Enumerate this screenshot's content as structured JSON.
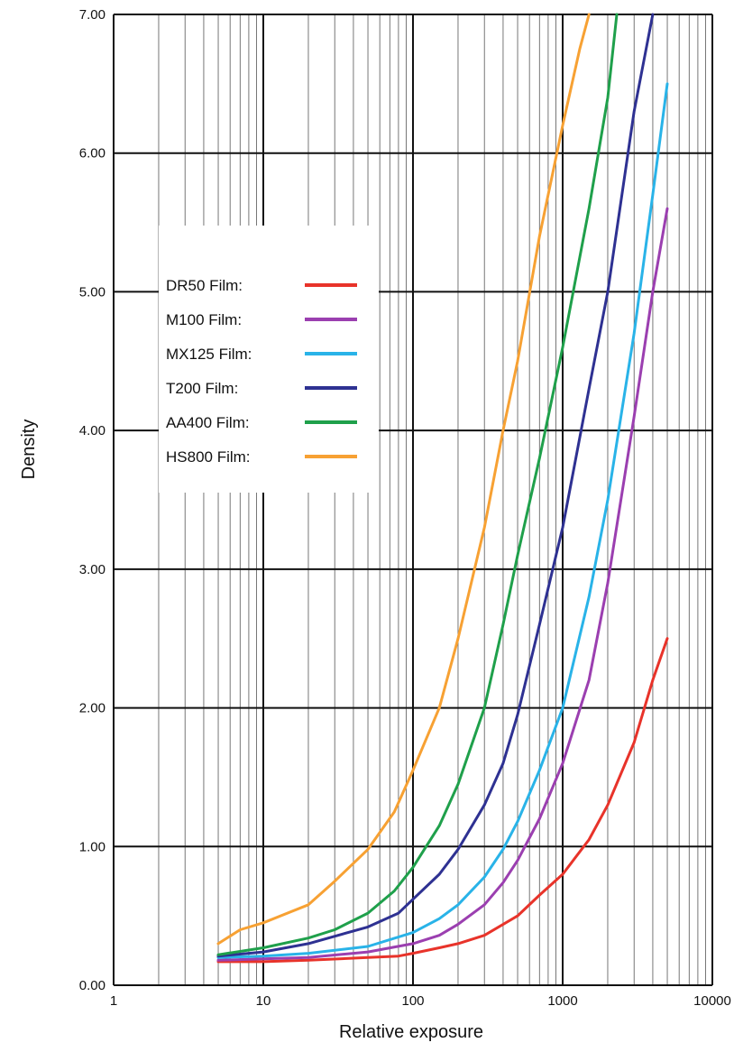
{
  "chart_data": {
    "type": "line",
    "xlabel": "Relative exposure",
    "ylabel": "Density",
    "x_scale": "log",
    "xlim": [
      1,
      10000
    ],
    "ylim": [
      0,
      7
    ],
    "x_ticks": [
      "1",
      "10",
      "100",
      "1000",
      "10000"
    ],
    "y_ticks": [
      "0.00",
      "1.00",
      "2.00",
      "3.00",
      "4.00",
      "5.00",
      "6.00",
      "7.00"
    ],
    "grid": true,
    "legend_position": "upper-left",
    "series": [
      {
        "name": "DR50 Film:",
        "color": "#e8332a",
        "points": [
          [
            5,
            0.17
          ],
          [
            10,
            0.17
          ],
          [
            20,
            0.18
          ],
          [
            50,
            0.2
          ],
          [
            80,
            0.21
          ],
          [
            100,
            0.23
          ],
          [
            150,
            0.27
          ],
          [
            200,
            0.3
          ],
          [
            300,
            0.36
          ],
          [
            500,
            0.5
          ],
          [
            700,
            0.65
          ],
          [
            1000,
            0.8
          ],
          [
            1500,
            1.05
          ],
          [
            2000,
            1.3
          ],
          [
            3000,
            1.75
          ],
          [
            4000,
            2.2
          ],
          [
            5000,
            2.5
          ]
        ]
      },
      {
        "name": "M100 Film:",
        "color": "#9b3fb0",
        "points": [
          [
            5,
            0.18
          ],
          [
            10,
            0.19
          ],
          [
            20,
            0.2
          ],
          [
            50,
            0.24
          ],
          [
            100,
            0.3
          ],
          [
            150,
            0.36
          ],
          [
            200,
            0.44
          ],
          [
            300,
            0.58
          ],
          [
            400,
            0.74
          ],
          [
            500,
            0.9
          ],
          [
            700,
            1.2
          ],
          [
            1000,
            1.6
          ],
          [
            1500,
            2.2
          ],
          [
            2000,
            2.9
          ],
          [
            3000,
            4.1
          ],
          [
            4000,
            5.0
          ],
          [
            5000,
            5.6
          ]
        ]
      },
      {
        "name": "MX125 Film:",
        "color": "#29b3e8",
        "points": [
          [
            5,
            0.2
          ],
          [
            10,
            0.21
          ],
          [
            20,
            0.23
          ],
          [
            50,
            0.28
          ],
          [
            100,
            0.38
          ],
          [
            150,
            0.48
          ],
          [
            200,
            0.58
          ],
          [
            300,
            0.78
          ],
          [
            400,
            0.98
          ],
          [
            500,
            1.18
          ],
          [
            700,
            1.55
          ],
          [
            1000,
            2.0
          ],
          [
            1500,
            2.8
          ],
          [
            2000,
            3.5
          ],
          [
            3000,
            4.7
          ],
          [
            4000,
            5.7
          ],
          [
            5000,
            6.5
          ]
        ]
      },
      {
        "name": "T200 Film:",
        "color": "#2e3192",
        "points": [
          [
            5,
            0.21
          ],
          [
            10,
            0.24
          ],
          [
            20,
            0.3
          ],
          [
            50,
            0.42
          ],
          [
            80,
            0.52
          ],
          [
            100,
            0.62
          ],
          [
            150,
            0.8
          ],
          [
            200,
            0.98
          ],
          [
            300,
            1.3
          ],
          [
            400,
            1.6
          ],
          [
            500,
            1.95
          ],
          [
            700,
            2.6
          ],
          [
            1000,
            3.3
          ],
          [
            1500,
            4.3
          ],
          [
            2000,
            5.0
          ],
          [
            3000,
            6.3
          ],
          [
            4000,
            7.0
          ]
        ]
      },
      {
        "name": "AA400 Film:",
        "color": "#1fa04b",
        "points": [
          [
            5,
            0.22
          ],
          [
            10,
            0.27
          ],
          [
            20,
            0.34
          ],
          [
            30,
            0.4
          ],
          [
            50,
            0.52
          ],
          [
            75,
            0.68
          ],
          [
            100,
            0.85
          ],
          [
            150,
            1.15
          ],
          [
            200,
            1.45
          ],
          [
            300,
            2.0
          ],
          [
            400,
            2.6
          ],
          [
            500,
            3.1
          ],
          [
            700,
            3.8
          ],
          [
            1000,
            4.6
          ],
          [
            1500,
            5.6
          ],
          [
            2000,
            6.4
          ],
          [
            2300,
            7.0
          ]
        ]
      },
      {
        "name": "HS800 Film:",
        "color": "#f7a133",
        "points": [
          [
            5,
            0.3
          ],
          [
            7,
            0.4
          ],
          [
            10,
            0.45
          ],
          [
            20,
            0.58
          ],
          [
            30,
            0.75
          ],
          [
            50,
            0.98
          ],
          [
            75,
            1.25
          ],
          [
            100,
            1.55
          ],
          [
            150,
            2.0
          ],
          [
            200,
            2.5
          ],
          [
            300,
            3.3
          ],
          [
            400,
            4.0
          ],
          [
            500,
            4.5
          ],
          [
            700,
            5.4
          ],
          [
            1000,
            6.2
          ],
          [
            1300,
            6.75
          ],
          [
            1500,
            7.0
          ]
        ]
      }
    ]
  }
}
